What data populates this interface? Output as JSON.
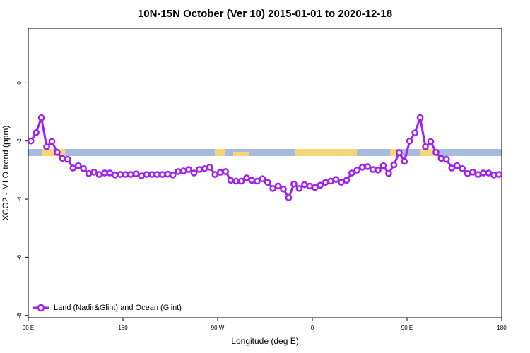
{
  "chart_data": {
    "type": "line",
    "title": "10N-15N October (Ver 10)   2015-01-01 to 2020-12-18",
    "xlabel": "Longitude (deg E)",
    "ylabel": "XCO2 - MLO trend (ppm)",
    "x": [
      92.5,
      97.5,
      102.5,
      107.5,
      112.5,
      117.5,
      122.5,
      127.5,
      132.5,
      137.5,
      142.5,
      147.5,
      152.5,
      157.5,
      162.5,
      167.5,
      172.5,
      177.5,
      182.5,
      187.5,
      192.5,
      197.5,
      202.5,
      207.5,
      212.5,
      217.5,
      222.5,
      227.5,
      232.5,
      237.5,
      242.5,
      247.5,
      252.5,
      257.5,
      262.5,
      267.5,
      272.5,
      277.5,
      282.5,
      287.5,
      292.5,
      297.5,
      302.5,
      307.5,
      312.5,
      317.5,
      322.5,
      327.5,
      332.5,
      337.5,
      342.5,
      347.5,
      352.5,
      357.5,
      362.5,
      367.5,
      372.5,
      377.5,
      382.5,
      387.5,
      392.5,
      397.5,
      402.5,
      407.5,
      412.5,
      417.5,
      422.5,
      427.5,
      432.5,
      437.5,
      442.5,
      447.5,
      452.5,
      457.5,
      462.5,
      467.5,
      472.5,
      477.5,
      482.5,
      487.5,
      492.5,
      497.5,
      502.5,
      507.5,
      512.5,
      517.5,
      522.5,
      527.5,
      532.5,
      537.5
    ],
    "series": [
      {
        "name": "Land (Nadir&Glint) and Ocean (Glint)",
        "color": "#a020f0",
        "values": [
          -2.0,
          -1.71,
          -1.2,
          -2.2,
          -2.02,
          -2.39,
          -2.6,
          -2.63,
          -2.93,
          -2.85,
          -2.95,
          -3.12,
          -3.07,
          -3.15,
          -3.1,
          -3.1,
          -3.17,
          -3.15,
          -3.15,
          -3.15,
          -3.13,
          -3.2,
          -3.15,
          -3.15,
          -3.15,
          -3.15,
          -3.14,
          -3.17,
          -3.05,
          -3.03,
          -2.98,
          -3.1,
          -2.98,
          -2.95,
          -2.9,
          -3.15,
          -3.08,
          -3.05,
          -3.35,
          -3.38,
          -3.38,
          -3.27,
          -3.35,
          -3.38,
          -3.3,
          -3.42,
          -3.63,
          -3.55,
          -3.65,
          -3.95,
          -3.48,
          -3.63,
          -3.5,
          -3.55,
          -3.6,
          -3.52,
          -3.42,
          -3.38,
          -3.32,
          -3.42,
          -3.35,
          -3.1,
          -3.0,
          -2.9,
          -2.88,
          -2.98,
          -3.0,
          -2.85,
          -3.12,
          -2.82,
          -2.4,
          -2.7,
          -2.0,
          -1.72,
          -1.2,
          -2.2,
          -2.02,
          -2.39,
          -2.6,
          -2.63,
          -2.93,
          -2.85,
          -2.95,
          -3.12,
          -3.07,
          -3.15,
          -3.1,
          -3.1,
          -3.17,
          -3.15
        ]
      }
    ],
    "xlim": [
      90,
      540
    ],
    "xticks": [
      {
        "value": 90,
        "label": "90 E"
      },
      180,
      {
        "value": 270,
        "label": "90 W"
      },
      {
        "value": 360,
        "label": "0"
      },
      {
        "value": 450,
        "label": "90 E"
      },
      {
        "value": 540,
        "label": "180"
      }
    ],
    "ylim": [
      -8.08,
      1.88
    ],
    "yticks": [
      0,
      -2,
      -4,
      -6,
      -8
    ],
    "legend": "bottom-left"
  }
}
